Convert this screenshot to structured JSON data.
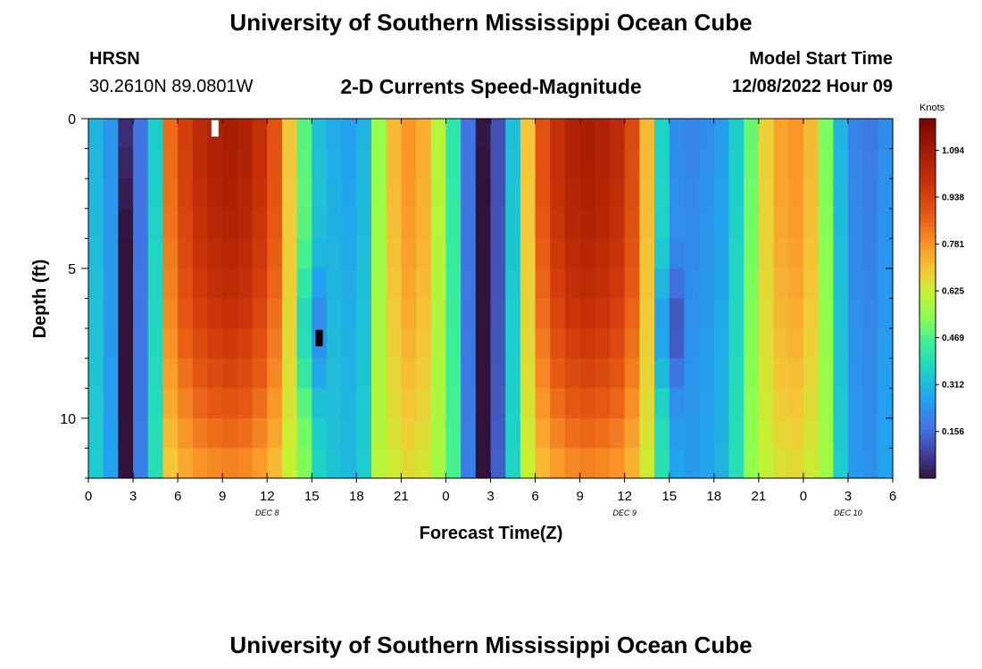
{
  "header": {
    "title": "University of Southern Mississippi Ocean Cube",
    "station": "HRSN",
    "coords": "30.2610N  89.0801W",
    "subtitle": "2-D Currents Speed-Magnitude",
    "model_label": "Model Start Time",
    "model_time": "12/08/2022 Hour 09"
  },
  "footer": {
    "title": "University of Southern Mississippi Ocean Cube"
  },
  "chart_data": {
    "type": "heatmap",
    "title": "2-D Currents Speed-Magnitude",
    "xlabel": "Forecast Time(Z)",
    "ylabel": "Depth (ft)",
    "x_hours_range": [
      0,
      54
    ],
    "x_step_hours": 1,
    "y_range": [
      0,
      12
    ],
    "y_ticks": [
      0,
      5,
      10
    ],
    "x_tick_labels": [
      "0",
      "3",
      "6",
      "9",
      "12",
      "15",
      "18",
      "21",
      "0",
      "3",
      "6",
      "9",
      "12",
      "15",
      "18",
      "21",
      "0",
      "3",
      "6"
    ],
    "x_tick_hours": [
      0,
      3,
      6,
      9,
      12,
      15,
      18,
      21,
      24,
      27,
      30,
      33,
      36,
      39,
      42,
      45,
      48,
      51,
      54
    ],
    "date_labels": [
      {
        "text": "DEC 8",
        "hour": 12
      },
      {
        "text": "DEC 9",
        "hour": 36
      },
      {
        "text": "DEC 10",
        "hour": 51
      }
    ],
    "depth_bins_ft": [
      0,
      1,
      2,
      3,
      4,
      5,
      6,
      7,
      8,
      9,
      10,
      11,
      12
    ],
    "surface_speed_by_hour_knots": [
      0.3,
      0.25,
      0.12,
      0.18,
      0.35,
      0.85,
      0.95,
      1.02,
      1.06,
      1.08,
      1.06,
      1.0,
      0.9,
      0.7,
      0.48,
      0.32,
      0.28,
      0.26,
      0.3,
      0.55,
      0.72,
      0.78,
      0.74,
      0.6,
      0.42,
      0.18,
      0.08,
      0.12,
      0.32,
      0.7,
      0.9,
      1.0,
      1.06,
      1.08,
      1.06,
      1.02,
      0.92,
      0.72,
      0.36,
      0.22,
      0.2,
      0.22,
      0.25,
      0.35,
      0.5,
      0.68,
      0.76,
      0.78,
      0.72,
      0.52,
      0.3,
      0.2,
      0.18,
      0.22,
      0.3
    ],
    "cold_spot_hours": [
      2.5,
      15,
      26.5,
      39
    ],
    "legend": {
      "title": "Knots",
      "placement": "right",
      "ticks": [
        1.094,
        0.938,
        0.781,
        0.625,
        0.469,
        0.312,
        0.156
      ],
      "tick_labels": [
        "1.094",
        "0.938",
        "0.781",
        "0.625",
        "0.469",
        "0.312",
        "0.156"
      ],
      "range": [
        0,
        1.2
      ]
    },
    "missing_cells": [
      {
        "hour": 8,
        "depth": 0
      },
      {
        "hour": 15,
        "depth": 7
      }
    ]
  }
}
